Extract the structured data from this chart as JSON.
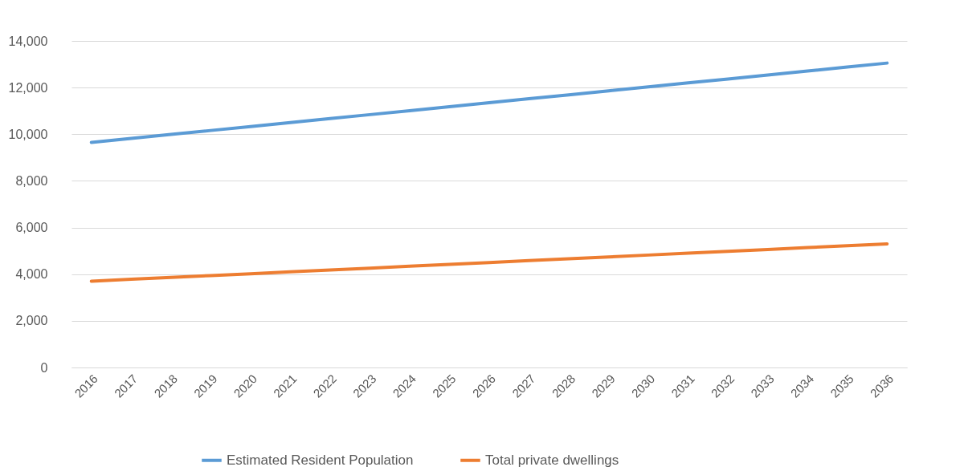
{
  "chart_data": {
    "type": "line",
    "categories": [
      "2016",
      "2017",
      "2018",
      "2019",
      "2020",
      "2021",
      "2022",
      "2023",
      "2024",
      "2025",
      "2026",
      "2027",
      "2028",
      "2029",
      "2030",
      "2031",
      "2032",
      "2033",
      "2034",
      "2035",
      "2036"
    ],
    "series": [
      {
        "name": "Estimated Resident Population",
        "color": "#5b9bd5",
        "values": [
          9650,
          9820,
          9990,
          10160,
          10330,
          10500,
          10670,
          10840,
          11010,
          11180,
          11350,
          11520,
          11690,
          11860,
          12030,
          12200,
          12370,
          12540,
          12710,
          12880,
          13050
        ]
      },
      {
        "name": "Total private dwellings",
        "color": "#ed7d31",
        "values": [
          3700,
          3780,
          3860,
          3940,
          4020,
          4100,
          4180,
          4260,
          4340,
          4420,
          4500,
          4580,
          4660,
          4740,
          4820,
          4900,
          4980,
          5060,
          5140,
          5220,
          5300
        ]
      }
    ],
    "ylim": [
      0,
      14000
    ],
    "yticks": [
      {
        "value": 0,
        "label": "0"
      },
      {
        "value": 2000,
        "label": "2,000"
      },
      {
        "value": 4000,
        "label": "4,000"
      },
      {
        "value": 6000,
        "label": "6,000"
      },
      {
        "value": 8000,
        "label": "8,000"
      },
      {
        "value": 10000,
        "label": "10,000"
      },
      {
        "value": 12000,
        "label": "12,000"
      },
      {
        "value": 14000,
        "label": "14,000"
      }
    ],
    "grid": "y",
    "legend": "bottom",
    "marker": "none",
    "line_style": "solid"
  }
}
